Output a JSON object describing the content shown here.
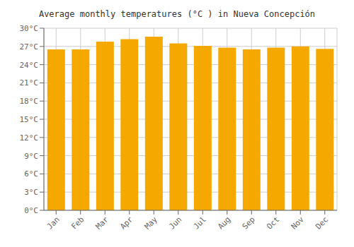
{
  "chart_data": {
    "type": "bar",
    "title": "Average monthly temperatures (°C ) in Nueva Concepción",
    "categories": [
      "Jan",
      "Feb",
      "Mar",
      "Apr",
      "May",
      "Jun",
      "Jul",
      "Aug",
      "Sep",
      "Oct",
      "Nov",
      "Dec"
    ],
    "values": [
      26.5,
      26.5,
      27.8,
      28.2,
      28.6,
      27.5,
      27.1,
      26.8,
      26.5,
      26.8,
      27.0,
      26.6
    ],
    "color": "#F5A800",
    "ylim": [
      0,
      30
    ],
    "yticks": [
      {
        "value": 0,
        "label": "0°C"
      },
      {
        "value": 3,
        "label": "3°C"
      },
      {
        "value": 6,
        "label": "6°C"
      },
      {
        "value": 9,
        "label": "9°C"
      },
      {
        "value": 12,
        "label": "12°C"
      },
      {
        "value": 15,
        "label": "15°C"
      },
      {
        "value": 18,
        "label": "18°C"
      },
      {
        "value": 21,
        "label": "21°C"
      },
      {
        "value": 24,
        "label": "24°C"
      },
      {
        "value": 27,
        "label": "27°C"
      },
      {
        "value": 30,
        "label": "30°C"
      }
    ],
    "grid": true
  }
}
